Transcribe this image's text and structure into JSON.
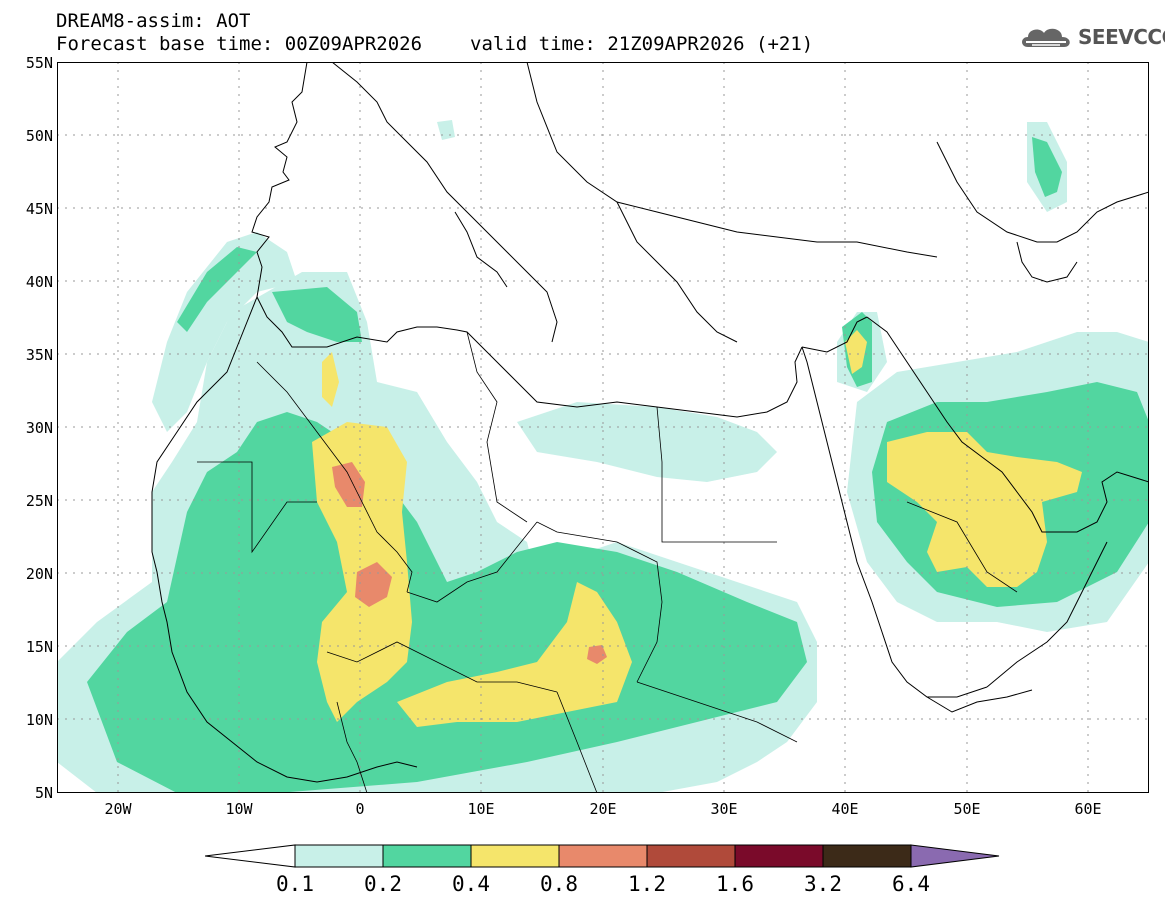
{
  "header": {
    "title_line1": "DREAM8-assim: AOT",
    "forecast_base": "Forecast base time: 00Z09APR2026",
    "valid_time": "valid time: 21Z09APR2026 (+21)",
    "logo_text": "SEEVCCC"
  },
  "map": {
    "extent_lon": [
      -25,
      65
    ],
    "extent_lat": [
      5,
      55
    ],
    "lat_labels": [
      "55N",
      "50N",
      "45N",
      "40N",
      "35N",
      "30N",
      "25N",
      "20N",
      "15N",
      "10N",
      "5N"
    ],
    "lat_values": [
      55,
      50,
      45,
      40,
      35,
      30,
      25,
      20,
      15,
      10,
      5
    ],
    "lon_labels": [
      "20W",
      "10W",
      "0",
      "10E",
      "20E",
      "30E",
      "40E",
      "50E",
      "60E"
    ],
    "lon_values": [
      -20,
      -10,
      0,
      10,
      20,
      30,
      40,
      50,
      60
    ]
  },
  "colorbar": {
    "labels": [
      "0.1",
      "0.2",
      "0.4",
      "0.8",
      "1.2",
      "1.6",
      "3.2",
      "6.4"
    ],
    "colors": [
      "#c8f0e8",
      "#52d6a0",
      "#f5e56b",
      "#e8896b",
      "#b04a3a",
      "#7a0a2a",
      "#3c2a18",
      "#8a6ab0"
    ]
  }
}
